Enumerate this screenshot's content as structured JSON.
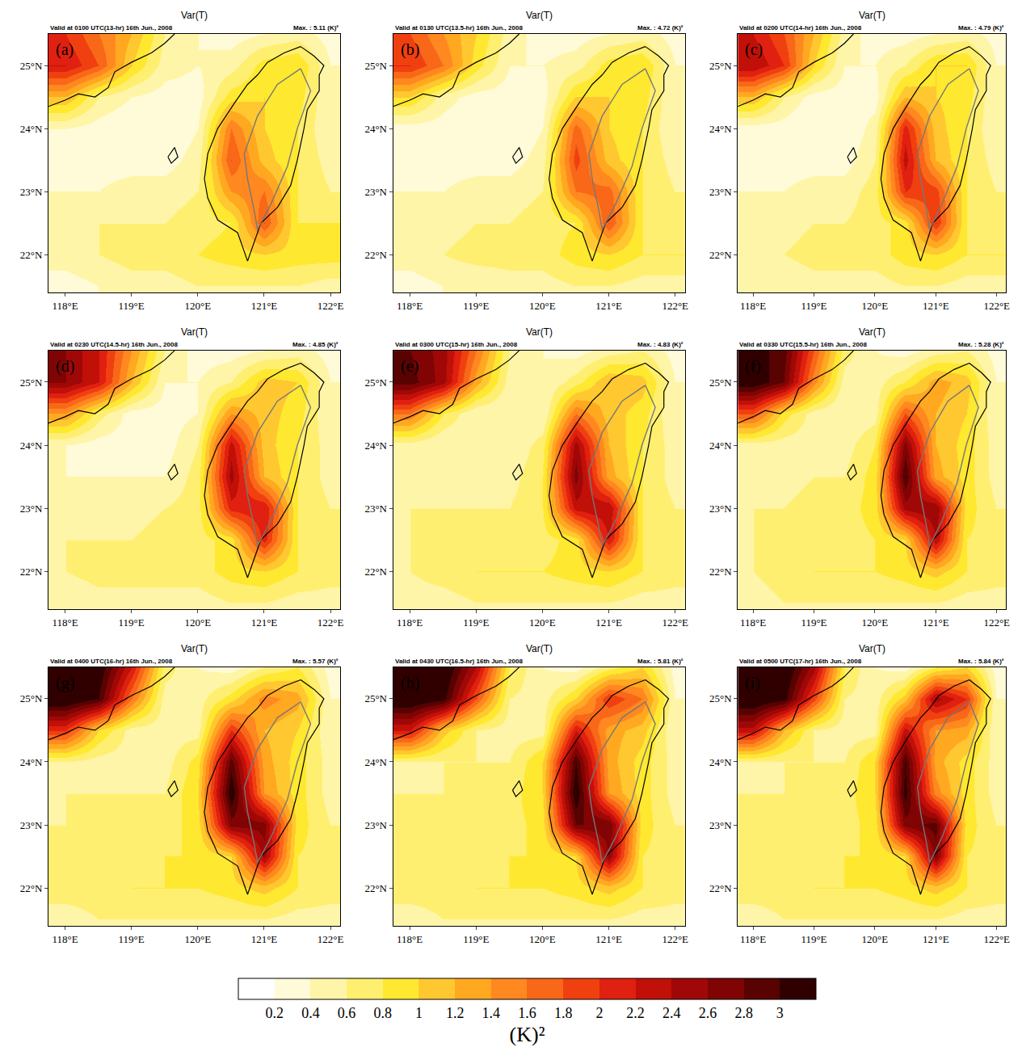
{
  "chart_data": [
    {
      "type": "heatmap",
      "panel": "(a)",
      "title": "Var(T)",
      "subtitle": "Valid at 0100 UTC(13-hr) 16th Jun., 2008",
      "max_label": "Max. : 5.11 (K)²",
      "z": [
        [
          0.3,
          0.4,
          0.5,
          0.5,
          0.6,
          0.6,
          0.6,
          0.6,
          0.5
        ],
        [
          0.5,
          0.6,
          0.7,
          0.7,
          0.8,
          0.9,
          1.0,
          0.9,
          0.9
        ],
        [
          0.5,
          0.6,
          0.6,
          0.6,
          0.7,
          0.8,
          1.8,
          0.8,
          0.8
        ],
        [
          0.4,
          0.4,
          0.5,
          0.5,
          0.6,
          1.4,
          1.6,
          0.8,
          0.6
        ],
        [
          0.3,
          0.3,
          0.3,
          0.3,
          0.5,
          1.8,
          1.1,
          0.8,
          0.5
        ],
        [
          0.4,
          0.3,
          0.2,
          0.2,
          0.4,
          1.6,
          1.0,
          0.8,
          0.4
        ],
        [
          1.2,
          0.6,
          0.4,
          0.3,
          0.3,
          0.9,
          1.0,
          0.9,
          0.4
        ],
        [
          2.2,
          1.8,
          1.0,
          0.5,
          0.4,
          0.5,
          0.9,
          1.0,
          0.4
        ],
        [
          2.0,
          1.6,
          1.2,
          0.6,
          0.4,
          0.3,
          0.4,
          0.5,
          0.3
        ]
      ]
    },
    {
      "type": "heatmap",
      "panel": "(b)",
      "title": "Var(T)",
      "subtitle": "Valid at 0130 UTC(13.5-hr) 16th Jun., 2008",
      "max_label": "Max. : 4.72 (K)²",
      "z": [
        [
          0.3,
          0.4,
          0.4,
          0.5,
          0.5,
          0.6,
          0.6,
          0.5,
          0.5
        ],
        [
          0.5,
          0.6,
          0.7,
          0.7,
          0.7,
          0.9,
          1.0,
          0.8,
          0.8
        ],
        [
          0.5,
          0.5,
          0.6,
          0.6,
          0.7,
          0.8,
          1.8,
          0.8,
          0.7
        ],
        [
          0.4,
          0.4,
          0.5,
          0.5,
          0.6,
          1.6,
          1.7,
          0.8,
          0.6
        ],
        [
          0.3,
          0.3,
          0.3,
          0.3,
          0.5,
          1.9,
          1.1,
          0.8,
          0.5
        ],
        [
          0.3,
          0.3,
          0.2,
          0.2,
          0.4,
          1.7,
          1.0,
          0.8,
          0.4
        ],
        [
          1.0,
          0.5,
          0.3,
          0.3,
          0.3,
          1.0,
          1.0,
          0.9,
          0.4
        ],
        [
          2.0,
          1.6,
          0.9,
          0.4,
          0.4,
          0.5,
          0.9,
          1.0,
          0.4
        ],
        [
          1.8,
          1.4,
          1.0,
          0.5,
          0.3,
          0.3,
          0.4,
          0.5,
          0.3
        ]
      ]
    },
    {
      "type": "heatmap",
      "panel": "(c)",
      "title": "Var(T)",
      "subtitle": "Valid at 0200 UTC(14-hr) 16th Jun., 2008",
      "max_label": "Max. : 4.79 (K)²",
      "z": [
        [
          0.4,
          0.4,
          0.5,
          0.5,
          0.5,
          0.6,
          0.6,
          0.5,
          0.5
        ],
        [
          0.5,
          0.6,
          0.7,
          0.7,
          0.7,
          0.9,
          1.0,
          0.8,
          0.8
        ],
        [
          0.5,
          0.5,
          0.6,
          0.6,
          0.7,
          0.9,
          2.0,
          0.8,
          0.7
        ],
        [
          0.4,
          0.4,
          0.5,
          0.5,
          0.7,
          2.0,
          1.9,
          0.8,
          0.6
        ],
        [
          0.3,
          0.3,
          0.3,
          0.3,
          0.6,
          2.3,
          1.2,
          0.8,
          0.5
        ],
        [
          0.3,
          0.3,
          0.2,
          0.2,
          0.5,
          2.1,
          1.1,
          0.8,
          0.4
        ],
        [
          1.2,
          0.6,
          0.3,
          0.3,
          0.3,
          1.2,
          1.0,
          0.9,
          0.4
        ],
        [
          2.4,
          2.0,
          1.0,
          0.4,
          0.4,
          0.6,
          1.0,
          1.0,
          0.4
        ],
        [
          2.2,
          1.8,
          1.2,
          0.5,
          0.3,
          0.3,
          0.4,
          0.5,
          0.3
        ]
      ]
    },
    {
      "type": "heatmap",
      "panel": "(d)",
      "title": "Var(T)",
      "subtitle": "Valid at 0230 UTC(14.5-hr) 16th Jun., 2008",
      "max_label": "Max. : 4.85 (K)²",
      "z": [
        [
          0.4,
          0.5,
          0.5,
          0.5,
          0.5,
          0.6,
          0.6,
          0.5,
          0.5
        ],
        [
          0.6,
          0.7,
          0.7,
          0.7,
          0.7,
          0.9,
          1.0,
          0.8,
          0.7
        ],
        [
          0.6,
          0.6,
          0.6,
          0.7,
          0.7,
          0.9,
          2.1,
          0.8,
          0.7
        ],
        [
          0.5,
          0.5,
          0.5,
          0.6,
          0.7,
          2.1,
          2.2,
          0.8,
          0.6
        ],
        [
          0.4,
          0.4,
          0.4,
          0.4,
          0.7,
          2.5,
          1.2,
          0.8,
          0.5
        ],
        [
          0.4,
          0.3,
          0.3,
          0.3,
          0.6,
          2.3,
          1.1,
          0.8,
          0.5
        ],
        [
          1.4,
          0.7,
          0.3,
          0.3,
          0.4,
          1.4,
          1.1,
          0.9,
          0.4
        ],
        [
          2.6,
          2.2,
          1.2,
          0.4,
          0.4,
          0.6,
          1.1,
          1.0,
          0.4
        ],
        [
          2.6,
          2.2,
          1.4,
          0.6,
          0.3,
          0.3,
          0.4,
          0.5,
          0.3
        ]
      ]
    },
    {
      "type": "heatmap",
      "panel": "(e)",
      "title": "Var(T)",
      "subtitle": "Valid at 0300 UTC(15-hr) 16th Jun., 2008",
      "max_label": "Max. : 4.83 (K)²",
      "z": [
        [
          0.5,
          0.5,
          0.6,
          0.6,
          0.6,
          0.6,
          0.6,
          0.5,
          0.5
        ],
        [
          0.6,
          0.7,
          0.8,
          0.8,
          0.8,
          0.9,
          1.0,
          0.8,
          0.7
        ],
        [
          0.6,
          0.7,
          0.7,
          0.7,
          0.7,
          0.9,
          2.2,
          0.8,
          0.7
        ],
        [
          0.6,
          0.6,
          0.6,
          0.6,
          0.8,
          2.3,
          2.4,
          0.8,
          0.6
        ],
        [
          0.5,
          0.5,
          0.5,
          0.5,
          0.8,
          2.7,
          1.3,
          0.8,
          0.5
        ],
        [
          0.5,
          0.4,
          0.4,
          0.4,
          0.7,
          2.5,
          1.2,
          0.8,
          0.5
        ],
        [
          1.6,
          0.8,
          0.4,
          0.4,
          0.4,
          1.6,
          1.1,
          0.9,
          0.4
        ],
        [
          2.9,
          2.5,
          1.3,
          0.5,
          0.4,
          0.7,
          1.2,
          1.1,
          0.4
        ],
        [
          2.8,
          2.5,
          1.6,
          0.6,
          0.4,
          0.3,
          0.5,
          0.6,
          0.3
        ]
      ]
    },
    {
      "type": "heatmap",
      "panel": "(f)",
      "title": "Var(T)",
      "subtitle": "Valid at 0330 UTC(15.5-hr) 16th Jun., 2008",
      "max_label": "Max. : 5.28 (K)²",
      "z": [
        [
          0.5,
          0.6,
          0.6,
          0.6,
          0.6,
          0.6,
          0.6,
          0.5,
          0.5
        ],
        [
          0.6,
          0.7,
          0.8,
          0.8,
          0.8,
          0.9,
          1.1,
          0.8,
          0.7
        ],
        [
          0.6,
          0.7,
          0.7,
          0.7,
          0.8,
          1.0,
          2.4,
          0.8,
          0.7
        ],
        [
          0.6,
          0.6,
          0.7,
          0.7,
          0.9,
          2.5,
          2.6,
          0.9,
          0.6
        ],
        [
          0.5,
          0.5,
          0.6,
          0.6,
          0.9,
          3.0,
          1.3,
          0.9,
          0.5
        ],
        [
          0.5,
          0.5,
          0.5,
          0.5,
          0.8,
          2.7,
          1.2,
          0.9,
          0.5
        ],
        [
          1.8,
          0.9,
          0.5,
          0.4,
          0.5,
          1.8,
          1.2,
          1.0,
          0.4
        ],
        [
          3.2,
          2.8,
          1.5,
          0.5,
          0.5,
          0.8,
          1.3,
          1.1,
          0.4
        ],
        [
          3.1,
          2.9,
          1.8,
          0.7,
          0.4,
          0.3,
          0.5,
          0.6,
          0.3
        ]
      ]
    },
    {
      "type": "heatmap",
      "panel": "(g)",
      "title": "Var(T)",
      "subtitle": "Valid at 0400 UTC(16-hr) 16th Jun., 2008",
      "max_label": "Max. : 5.57 (K)²",
      "z": [
        [
          0.5,
          0.6,
          0.6,
          0.6,
          0.6,
          0.6,
          0.6,
          0.5,
          0.5
        ],
        [
          0.7,
          0.7,
          0.8,
          0.8,
          0.8,
          0.9,
          1.1,
          0.8,
          0.7
        ],
        [
          0.7,
          0.7,
          0.7,
          0.8,
          0.8,
          1.0,
          2.5,
          0.8,
          0.7
        ],
        [
          0.6,
          0.7,
          0.7,
          0.7,
          0.9,
          2.7,
          2.7,
          0.9,
          0.6
        ],
        [
          0.6,
          0.6,
          0.6,
          0.6,
          1.0,
          3.2,
          1.4,
          0.9,
          0.5
        ],
        [
          0.6,
          0.5,
          0.5,
          0.5,
          0.9,
          2.9,
          1.3,
          0.9,
          0.5
        ],
        [
          2.0,
          1.0,
          0.5,
          0.5,
          0.5,
          2.0,
          1.2,
          1.0,
          0.4
        ],
        [
          3.3,
          3.0,
          1.6,
          0.5,
          0.5,
          0.9,
          1.5,
          1.3,
          0.4
        ],
        [
          3.3,
          3.2,
          2.2,
          0.7,
          0.4,
          0.3,
          0.6,
          0.8,
          0.3
        ]
      ]
    },
    {
      "type": "heatmap",
      "panel": "(h)",
      "title": "Var(T)",
      "subtitle": "Valid at 0430 UTC(16.5-hr) 16th Jun., 2008",
      "max_label": "Max. : 5.81 (K)²",
      "z": [
        [
          0.5,
          0.6,
          0.6,
          0.6,
          0.6,
          0.6,
          0.6,
          0.5,
          0.5
        ],
        [
          0.7,
          0.7,
          0.8,
          0.8,
          0.8,
          0.9,
          1.1,
          0.8,
          0.7
        ],
        [
          0.7,
          0.7,
          0.7,
          0.8,
          0.8,
          1.0,
          2.6,
          0.8,
          0.7
        ],
        [
          0.7,
          0.7,
          0.7,
          0.7,
          0.9,
          2.8,
          2.8,
          0.9,
          0.6
        ],
        [
          0.6,
          0.6,
          0.7,
          0.7,
          1.0,
          3.2,
          1.4,
          0.9,
          0.5
        ],
        [
          0.6,
          0.6,
          0.6,
          0.6,
          1.0,
          3.0,
          1.3,
          0.9,
          0.5
        ],
        [
          2.2,
          1.1,
          0.6,
          0.5,
          0.5,
          2.2,
          1.3,
          1.1,
          0.4
        ],
        [
          3.3,
          3.1,
          1.8,
          0.6,
          0.5,
          1.0,
          2.0,
          1.6,
          0.4
        ],
        [
          3.3,
          3.3,
          2.4,
          0.8,
          0.4,
          0.3,
          0.7,
          1.0,
          0.3
        ]
      ]
    },
    {
      "type": "heatmap",
      "panel": "(i)",
      "title": "Var(T)",
      "subtitle": "Valid at 0500 UTC(17-hr) 16th Jun., 2008",
      "max_label": "Max. : 5.84 (K)²",
      "z": [
        [
          0.5,
          0.6,
          0.6,
          0.6,
          0.6,
          0.6,
          0.6,
          0.5,
          0.5
        ],
        [
          0.7,
          0.7,
          0.8,
          0.8,
          0.8,
          0.9,
          1.1,
          0.8,
          0.7
        ],
        [
          0.7,
          0.7,
          0.7,
          0.8,
          0.8,
          1.0,
          2.7,
          0.8,
          0.7
        ],
        [
          0.7,
          0.7,
          0.7,
          0.7,
          0.9,
          2.7,
          2.9,
          0.9,
          0.6
        ],
        [
          0.6,
          0.6,
          0.7,
          0.7,
          1.0,
          3.1,
          1.5,
          0.9,
          0.5
        ],
        [
          0.6,
          0.6,
          0.6,
          0.6,
          1.0,
          3.0,
          1.3,
          0.9,
          0.5
        ],
        [
          2.3,
          1.2,
          0.6,
          0.5,
          0.5,
          2.3,
          1.4,
          1.3,
          0.4
        ],
        [
          3.3,
          3.1,
          1.9,
          0.6,
          0.5,
          1.1,
          2.5,
          2.0,
          0.4
        ],
        [
          3.3,
          3.3,
          2.5,
          0.8,
          0.4,
          0.3,
          0.8,
          1.0,
          0.3
        ]
      ]
    }
  ],
  "grid_x": [
    118,
    118.5,
    119,
    119.5,
    120,
    120.5,
    121,
    121.5,
    122
  ],
  "grid_y": [
    21.5,
    22,
    22.5,
    23,
    23.5,
    24,
    24.5,
    25,
    25.5
  ],
  "xlim": [
    117.75,
    122.15
  ],
  "ylim": [
    21.4,
    25.5
  ],
  "xticks": [
    {
      "value": 118,
      "label": "118°E"
    },
    {
      "value": 119,
      "label": "119°E"
    },
    {
      "value": 120,
      "label": "120°E"
    },
    {
      "value": 121,
      "label": "121°E"
    },
    {
      "value": 122,
      "label": "122°E"
    }
  ],
  "yticks": [
    {
      "value": 22,
      "label": "22°N"
    },
    {
      "value": 23,
      "label": "23°N"
    },
    {
      "value": 24,
      "label": "24°N"
    },
    {
      "value": 25,
      "label": "25°N"
    }
  ],
  "coastlines": [
    {
      "lon": [
        121.55,
        121.75,
        121.9,
        121.83,
        121.83,
        121.65,
        121.6,
        121.5,
        121.4,
        121.2,
        120.95,
        120.85,
        120.75,
        120.7,
        120.6,
        120.3,
        120.15,
        120.1,
        120.15,
        120.3,
        120.55,
        120.75,
        120.9,
        121.05,
        121.3,
        121.55
      ],
      "lat": [
        25.3,
        25.15,
        25.0,
        24.85,
        24.6,
        24.3,
        24.0,
        23.5,
        23.1,
        22.75,
        22.5,
        22.2,
        21.9,
        22.05,
        22.35,
        22.55,
        22.9,
        23.2,
        23.6,
        24.0,
        24.4,
        24.7,
        24.85,
        25.05,
        25.2,
        25.3
      ]
    },
    {
      "lon": [
        117.75,
        118.0,
        118.2,
        118.45,
        118.65,
        118.75,
        119.0,
        119.3,
        119.5,
        119.65
      ],
      "lat": [
        24.35,
        24.45,
        24.55,
        24.5,
        24.65,
        24.9,
        25.05,
        25.2,
        25.35,
        25.5
      ]
    },
    {
      "lon": [
        119.55,
        119.65,
        119.7,
        119.6,
        119.55
      ],
      "lat": [
        23.55,
        23.7,
        23.55,
        23.45,
        23.55
      ]
    }
  ],
  "terrain_contour": {
    "lon": [
      121.55,
      121.7,
      121.5,
      121.35,
      121.1,
      120.9,
      120.85,
      120.75,
      120.7,
      120.9,
      121.2,
      121.55
    ],
    "lat": [
      24.95,
      24.6,
      24.0,
      23.4,
      22.8,
      22.4,
      22.7,
      23.2,
      23.6,
      24.2,
      24.7,
      24.95
    ]
  },
  "colorbar": {
    "title": "(K)²",
    "range": [
      0,
      3.2
    ],
    "ticks": [
      0.2,
      0.4,
      0.6,
      0.8,
      1,
      1.2,
      1.4,
      1.6,
      1.8,
      2,
      2.2,
      2.4,
      2.6,
      2.8,
      3
    ],
    "colors": [
      "#ffffff",
      "#fffbd8",
      "#fff5a8",
      "#ffef70",
      "#ffe830",
      "#ffc830",
      "#ffa820",
      "#ff8820",
      "#f86818",
      "#f04010",
      "#e02010",
      "#c01008",
      "#a00808",
      "#800404",
      "#580202",
      "#300000"
    ]
  }
}
